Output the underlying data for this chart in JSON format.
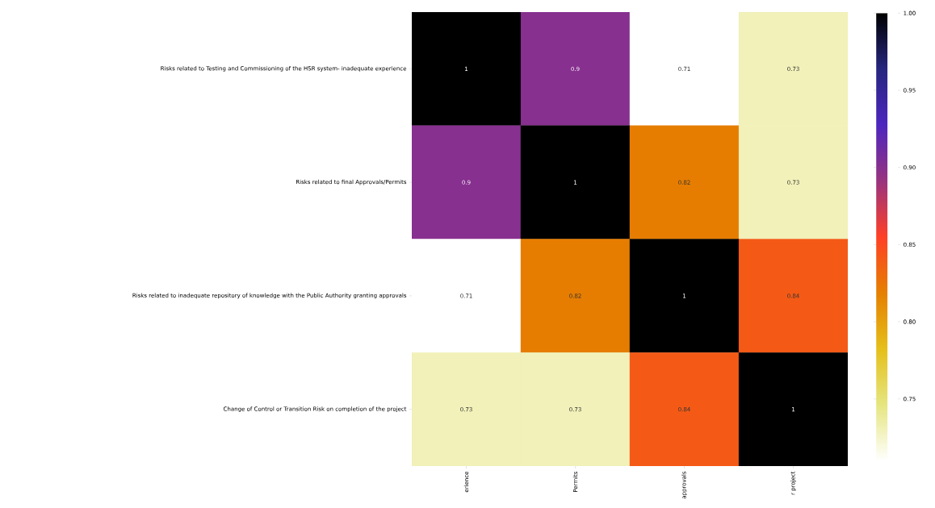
{
  "chart_data": {
    "type": "heatmap",
    "categories": [
      "erience",
      "Permits",
      "approvals",
      "r project"
    ],
    "y_categories": [
      "Risks related to Testing and Commissioning of the HSR system- inadequate experience",
      "Risks related to final Approvals/Permits",
      "Risks related to inadequate repository of knowledge with the Public Authority granting approvals",
      "Change of Control or Transition Risk on completion of the project"
    ],
    "cells": [
      [
        1,
        0.9,
        0.71,
        0.73
      ],
      [
        0.9,
        1,
        0.82,
        0.73
      ],
      [
        0.71,
        0.82,
        1,
        0.84
      ],
      [
        0.73,
        0.73,
        0.84,
        1
      ]
    ],
    "data_labels": true,
    "clim": [
      0.71,
      1.0
    ],
    "cticks": [
      {
        "value": 0.75,
        "label": "0.75"
      },
      {
        "value": 0.8,
        "label": "0.80"
      },
      {
        "value": 0.85,
        "label": "0.85"
      },
      {
        "value": 0.9,
        "label": "0.90"
      },
      {
        "value": 0.95,
        "label": "0.95"
      },
      {
        "value": 1.0,
        "label": "1.00"
      }
    ]
  }
}
